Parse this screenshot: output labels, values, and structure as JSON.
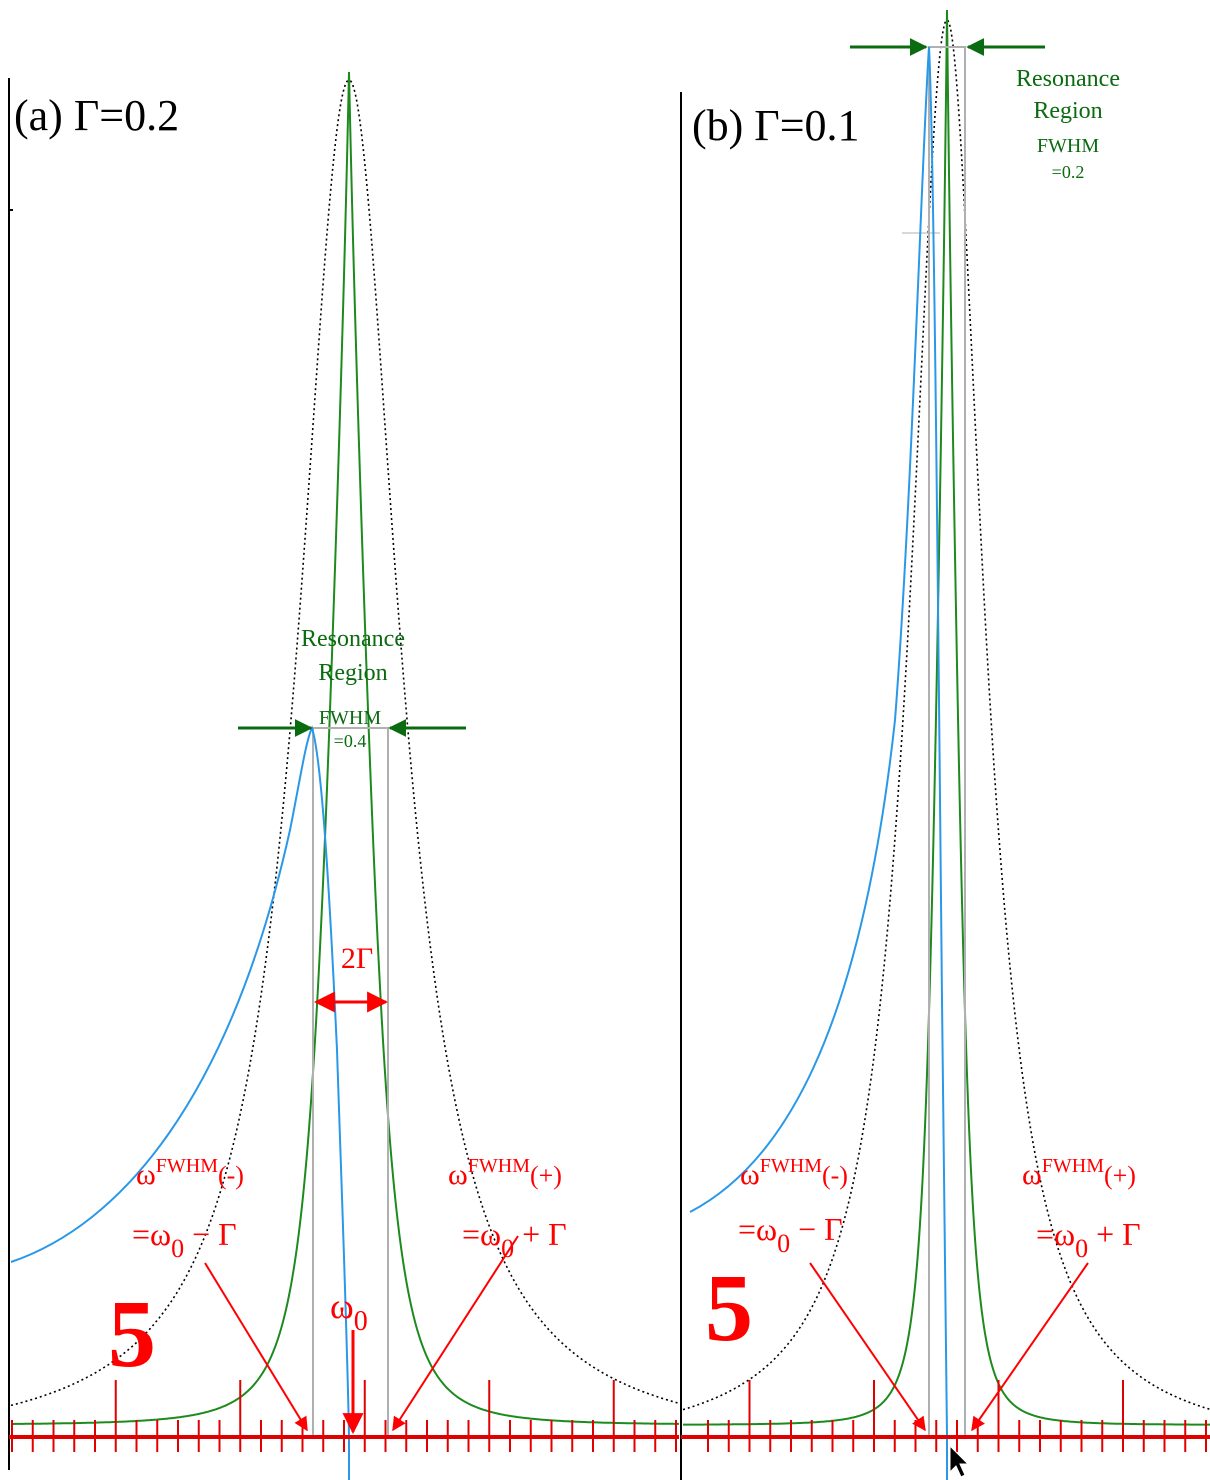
{
  "panel_a": {
    "title": "(a) Γ=0.2",
    "region": {
      "line1": "Resonance",
      "line2": "Region",
      "fwhm_label": "FWHM",
      "fwhm_value": "=0.4"
    },
    "width_label": "2Γ",
    "omega0_label": "ω",
    "omega0_sub": "0",
    "minus_top": {
      "base": "ω",
      "sup": "FWHM",
      "tail": "(-)"
    },
    "minus_bottom": {
      "prefix": "=ω",
      "sub": "0",
      "tail": " − Γ"
    },
    "plus_top": {
      "base": "ω",
      "sup": "FWHM",
      "tail": "(+)"
    },
    "plus_bottom": {
      "prefix": "=ω",
      "sub": "0",
      "tail": " + Γ"
    },
    "big_number": "5"
  },
  "panel_b": {
    "title": "(b) Γ=0.1",
    "region": {
      "line1": "Resonance",
      "line2": "Region",
      "fwhm_label": "FWHM",
      "fwhm_value": "=0.2"
    },
    "minus_top": {
      "base": "ω",
      "sup": "FWHM",
      "tail": "(-)"
    },
    "minus_bottom": {
      "prefix": "=ω",
      "sub": "0",
      "tail": " − Γ"
    },
    "plus_top": {
      "base": "ω",
      "sup": "FWHM",
      "tail": "(+)"
    },
    "plus_bottom": {
      "prefix": "=ω",
      "sub": "0",
      "tail": " + Γ"
    },
    "big_number": "5"
  },
  "colors": {
    "green_curve": "#1e8a1e",
    "blue_curve": "#2a98e8",
    "dotted_curve": "#000000",
    "annotation_red": "#ff0000",
    "label_green": "#0b6b10",
    "box_gray": "#b0b0b0"
  },
  "icons": {
    "cursor": "mouse-pointer-icon"
  }
}
